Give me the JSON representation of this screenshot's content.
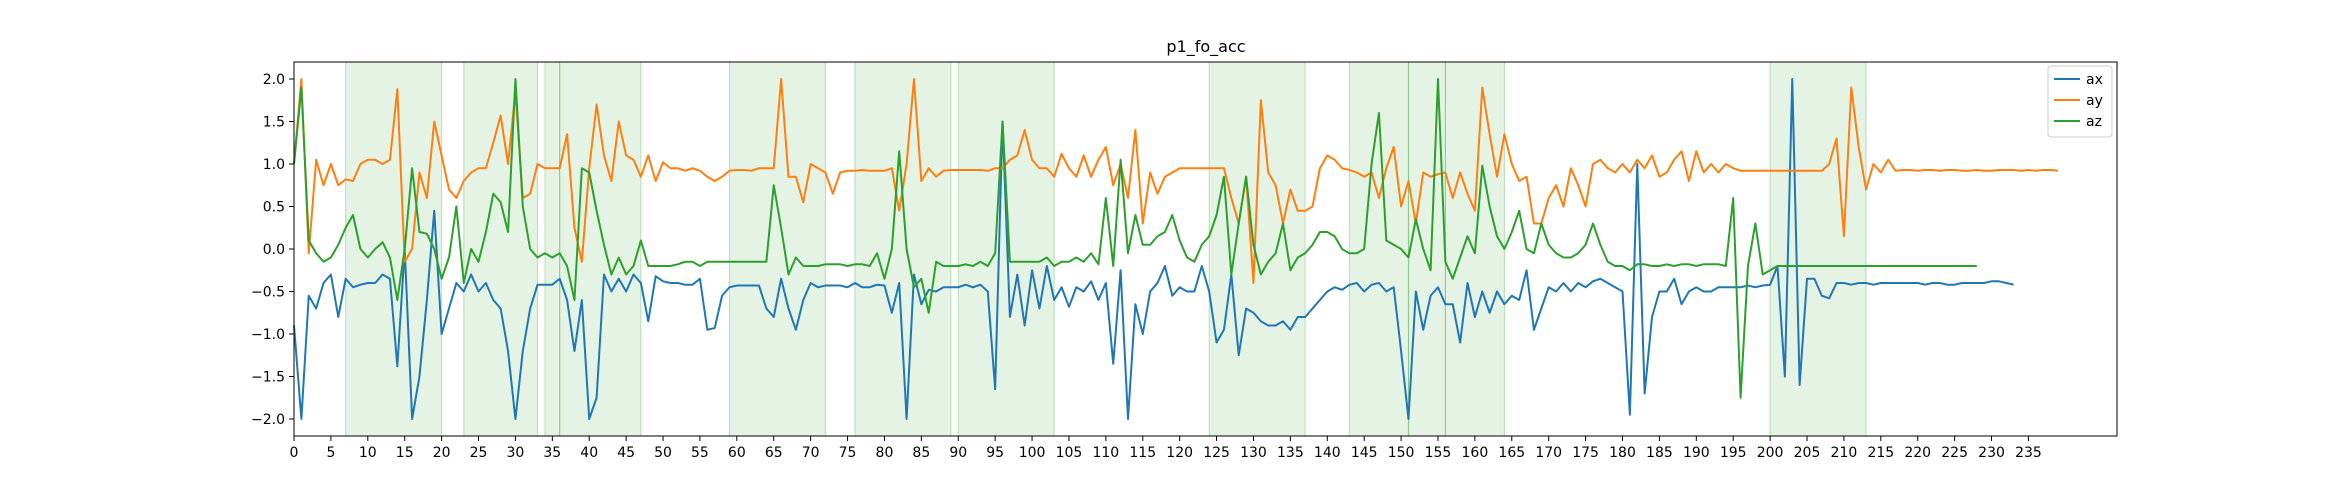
{
  "chart_data": {
    "type": "line",
    "title": "p1_fo_acc",
    "xlabel": "",
    "ylabel": "",
    "xlim": [
      0,
      247
    ],
    "ylim": [
      -2.2,
      2.2
    ],
    "xticks": [
      0,
      5,
      10,
      15,
      20,
      25,
      30,
      35,
      40,
      45,
      50,
      55,
      60,
      65,
      70,
      75,
      80,
      85,
      90,
      95,
      100,
      105,
      110,
      115,
      120,
      125,
      130,
      135,
      140,
      145,
      150,
      155,
      160,
      165,
      170,
      175,
      180,
      185,
      190,
      195,
      200,
      205,
      210,
      215,
      220,
      225,
      230,
      235
    ],
    "yticks": [
      2.0,
      1.5,
      1.0,
      0.5,
      0.0,
      -0.5,
      -1.0,
      -1.5,
      -2.0
    ],
    "legend_position": "top-right",
    "shaded_regions": [
      [
        7,
        20
      ],
      [
        23,
        33
      ],
      [
        34,
        36
      ],
      [
        36,
        47
      ],
      [
        59,
        72
      ],
      [
        76,
        89
      ],
      [
        90,
        103
      ],
      [
        124,
        137
      ],
      [
        143,
        151
      ],
      [
        151,
        156
      ],
      [
        156,
        164
      ],
      [
        200,
        213
      ]
    ],
    "series": [
      {
        "name": "ax",
        "color": "#1f77b4",
        "values": [
          -0.9,
          -2.0,
          -0.55,
          -0.7,
          -0.4,
          -0.3,
          -0.8,
          -0.35,
          -0.45,
          -0.42,
          -0.4,
          -0.4,
          -0.3,
          -0.35,
          -1.38,
          0.0,
          -2.0,
          -1.5,
          -0.6,
          0.45,
          -1.0,
          -0.7,
          -0.4,
          -0.5,
          -0.3,
          -0.5,
          -0.4,
          -0.6,
          -0.7,
          -1.2,
          -2.0,
          -1.2,
          -0.7,
          -0.42,
          -0.42,
          -0.42,
          -0.35,
          -0.6,
          -1.2,
          -0.6,
          -2.0,
          -1.75,
          -0.3,
          -0.5,
          -0.35,
          -0.5,
          -0.3,
          -0.4,
          -0.85,
          -0.32,
          -0.38,
          -0.4,
          -0.4,
          -0.42,
          -0.42,
          -0.35,
          -0.95,
          -0.93,
          -0.55,
          -0.45,
          -0.43,
          -0.43,
          -0.43,
          -0.43,
          -0.7,
          -0.8,
          -0.35,
          -0.7,
          -0.95,
          -0.6,
          -0.4,
          -0.45,
          -0.43,
          -0.43,
          -0.43,
          -0.45,
          -0.4,
          -0.45,
          -0.45,
          -0.42,
          -0.43,
          -0.75,
          -0.4,
          -2.0,
          -0.3,
          -0.65,
          -0.48,
          -0.5,
          -0.45,
          -0.45,
          -0.45,
          -0.42,
          -0.45,
          -0.42,
          -0.5,
          -1.65,
          1.5,
          -0.8,
          -0.3,
          -0.9,
          -0.25,
          -0.7,
          -0.2,
          -0.6,
          -0.45,
          -0.68,
          -0.45,
          -0.5,
          -0.38,
          -0.6,
          -0.4,
          -1.35,
          -0.25,
          -2.0,
          -0.65,
          -1.0,
          -0.5,
          -0.4,
          -0.2,
          -0.55,
          -0.45,
          -0.5,
          -0.5,
          -0.2,
          -0.5,
          -1.1,
          -0.95,
          -0.3,
          -1.25,
          -0.7,
          -0.75,
          -0.85,
          -0.9,
          -0.9,
          -0.85,
          -0.95,
          -0.8,
          -0.8,
          -0.7,
          -0.6,
          -0.5,
          -0.45,
          -0.48,
          -0.42,
          -0.4,
          -0.5,
          -0.42,
          -0.4,
          -0.5,
          -0.45,
          -1.2,
          -2.0,
          -0.5,
          -0.95,
          -0.55,
          -0.45,
          -0.65,
          -0.65,
          -1.1,
          -0.4,
          -0.8,
          -0.5,
          -0.75,
          -0.5,
          -0.65,
          -0.55,
          -0.6,
          -0.25,
          -0.95,
          -0.7,
          -0.45,
          -0.5,
          -0.4,
          -0.5,
          -0.4,
          -0.45,
          -0.38,
          -0.35,
          -0.4,
          -0.45,
          -0.5,
          -1.95,
          1.0,
          -1.7,
          -0.8,
          -0.5,
          -0.5,
          -0.35,
          -0.65,
          -0.5,
          -0.45,
          -0.5,
          -0.5,
          -0.45,
          -0.45,
          -0.45,
          -0.45,
          -0.43,
          -0.45,
          -0.43,
          -0.42,
          -0.2,
          -1.5,
          2.0,
          -1.6,
          -0.35,
          -0.35,
          -0.55,
          -0.58,
          -0.4,
          -0.4,
          -0.42,
          -0.4,
          -0.4,
          -0.42,
          -0.4,
          -0.4,
          -0.4,
          -0.4,
          -0.4,
          -0.4,
          -0.42,
          -0.4,
          -0.4,
          -0.42,
          -0.42,
          -0.4,
          -0.4,
          -0.4,
          -0.4,
          -0.38,
          -0.38,
          -0.4,
          -0.42
        ]
      },
      {
        "name": "ay",
        "color": "#ff7f0e",
        "values": [
          1.0,
          2.0,
          -0.05,
          1.05,
          0.75,
          1.0,
          0.75,
          0.82,
          0.8,
          1.0,
          1.05,
          1.05,
          1.0,
          1.05,
          1.88,
          -0.15,
          0.0,
          0.9,
          0.6,
          1.5,
          1.1,
          0.7,
          0.6,
          0.8,
          0.9,
          0.95,
          0.95,
          1.25,
          1.57,
          1.0,
          1.85,
          0.6,
          0.65,
          1.0,
          0.95,
          0.95,
          0.95,
          1.35,
          0.25,
          -0.15,
          0.95,
          1.7,
          1.1,
          0.8,
          1.5,
          1.1,
          1.05,
          0.85,
          1.1,
          0.8,
          1.02,
          0.95,
          0.95,
          0.92,
          0.95,
          0.92,
          0.85,
          0.8,
          0.85,
          0.92,
          0.93,
          0.93,
          0.92,
          0.95,
          0.95,
          0.95,
          2.0,
          0.85,
          0.85,
          0.55,
          1.0,
          0.95,
          0.9,
          0.65,
          0.9,
          0.92,
          0.92,
          0.93,
          0.92,
          0.92,
          0.92,
          0.95,
          0.45,
          1.0,
          2.0,
          0.8,
          0.95,
          0.85,
          0.92,
          0.93,
          0.93,
          0.93,
          0.93,
          0.93,
          0.92,
          0.95,
          0.95,
          1.05,
          1.1,
          1.4,
          1.05,
          0.95,
          0.95,
          0.85,
          1.12,
          0.95,
          0.85,
          1.1,
          0.85,
          1.05,
          1.2,
          0.75,
          1.0,
          0.6,
          1.4,
          0.3,
          0.9,
          0.65,
          0.85,
          0.9,
          0.95,
          0.95,
          0.95,
          0.95,
          0.95,
          0.95,
          0.95,
          0.6,
          0.3,
          0.85,
          -0.4,
          1.75,
          0.9,
          0.75,
          0.3,
          0.7,
          0.45,
          0.45,
          0.5,
          0.95,
          1.1,
          1.05,
          0.95,
          0.93,
          0.9,
          0.85,
          0.9,
          0.6,
          0.95,
          1.2,
          0.5,
          0.8,
          0.3,
          0.9,
          0.85,
          0.88,
          0.9,
          0.6,
          0.9,
          0.65,
          0.45,
          1.9,
          1.35,
          0.85,
          1.35,
          1.0,
          0.8,
          0.85,
          0.3,
          0.3,
          0.6,
          0.75,
          0.5,
          0.95,
          0.75,
          0.5,
          1.0,
          1.05,
          0.95,
          0.9,
          1.0,
          0.9,
          1.05,
          0.95,
          1.1,
          0.85,
          0.9,
          1.05,
          1.15,
          0.8,
          1.15,
          0.9,
          1.0,
          0.9,
          1.0,
          0.95,
          0.92,
          0.92,
          0.92,
          0.92,
          0.92,
          0.92,
          0.92,
          0.92,
          0.92,
          0.92,
          0.92,
          0.92,
          1.0,
          1.3,
          0.15,
          1.9,
          1.2,
          0.7,
          1.0,
          0.9,
          1.05,
          0.92,
          0.93,
          0.93,
          0.92,
          0.93,
          0.93,
          0.92,
          0.93,
          0.93,
          0.92,
          0.92,
          0.93,
          0.92,
          0.92,
          0.93,
          0.93,
          0.93,
          0.92,
          0.93,
          0.92,
          0.93,
          0.93,
          0.92
        ]
      },
      {
        "name": "az",
        "color": "#2ca02c",
        "values": [
          1.0,
          1.9,
          0.1,
          -0.05,
          -0.15,
          -0.1,
          0.05,
          0.25,
          0.4,
          0.0,
          -0.1,
          0.0,
          0.08,
          -0.1,
          -0.6,
          0.0,
          0.95,
          0.2,
          0.18,
          0.0,
          -0.35,
          -0.1,
          0.5,
          -0.4,
          0.0,
          -0.15,
          0.2,
          0.65,
          0.55,
          0.2,
          2.0,
          0.5,
          0.0,
          -0.1,
          -0.05,
          -0.1,
          -0.05,
          -0.2,
          -0.6,
          0.95,
          0.9,
          0.45,
          0.05,
          -0.3,
          -0.1,
          -0.3,
          -0.2,
          0.1,
          -0.2,
          -0.2,
          -0.2,
          -0.2,
          -0.18,
          -0.15,
          -0.15,
          -0.2,
          -0.15,
          -0.15,
          -0.15,
          -0.15,
          -0.15,
          -0.15,
          -0.15,
          -0.15,
          -0.15,
          0.75,
          0.25,
          -0.3,
          -0.1,
          -0.2,
          -0.2,
          -0.2,
          -0.18,
          -0.18,
          -0.18,
          -0.2,
          -0.18,
          -0.18,
          -0.2,
          -0.05,
          -0.35,
          0.0,
          1.15,
          0.0,
          -0.45,
          -0.35,
          -0.75,
          -0.15,
          -0.2,
          -0.2,
          -0.2,
          -0.18,
          -0.2,
          -0.15,
          -0.2,
          -0.05,
          1.5,
          -0.15,
          -0.15,
          -0.15,
          -0.15,
          -0.15,
          -0.1,
          -0.2,
          -0.15,
          -0.15,
          -0.1,
          -0.15,
          -0.05,
          -0.18,
          0.6,
          -0.2,
          1.05,
          -0.05,
          0.4,
          0.05,
          0.05,
          0.15,
          0.2,
          0.4,
          0.1,
          -0.1,
          -0.15,
          0.05,
          0.15,
          0.4,
          0.85,
          -0.3,
          0.3,
          0.85,
          0.05,
          -0.3,
          -0.15,
          -0.05,
          0.3,
          -0.25,
          -0.1,
          -0.05,
          0.05,
          0.2,
          0.2,
          0.15,
          0.0,
          -0.05,
          -0.05,
          0.0,
          1.0,
          1.6,
          0.1,
          0.05,
          0.0,
          -0.1,
          0.35,
          0.0,
          -0.25,
          2.0,
          -0.15,
          -0.35,
          -0.1,
          0.15,
          -0.05,
          0.98,
          0.5,
          0.15,
          0.0,
          0.2,
          0.45,
          0.0,
          -0.05,
          0.3,
          0.05,
          -0.05,
          -0.1,
          -0.1,
          -0.05,
          0.05,
          0.3,
          0.05,
          -0.15,
          -0.2,
          -0.2,
          -0.25,
          -0.18,
          -0.18,
          -0.2,
          -0.2,
          -0.18,
          -0.2,
          -0.18,
          -0.18,
          -0.2,
          -0.18,
          -0.18,
          -0.18,
          -0.2,
          0.6,
          -1.75,
          -0.2,
          0.3,
          -0.3,
          -0.25,
          -0.2,
          -0.2,
          -0.2,
          -0.2,
          -0.2,
          -0.2,
          -0.2,
          -0.2,
          -0.2,
          -0.2,
          -0.2,
          -0.2,
          -0.2,
          -0.2,
          -0.2,
          -0.2,
          -0.2,
          -0.2,
          -0.2,
          -0.2,
          -0.2,
          -0.2,
          -0.2,
          -0.2,
          -0.2,
          -0.2,
          -0.2,
          -0.2
        ]
      }
    ]
  }
}
